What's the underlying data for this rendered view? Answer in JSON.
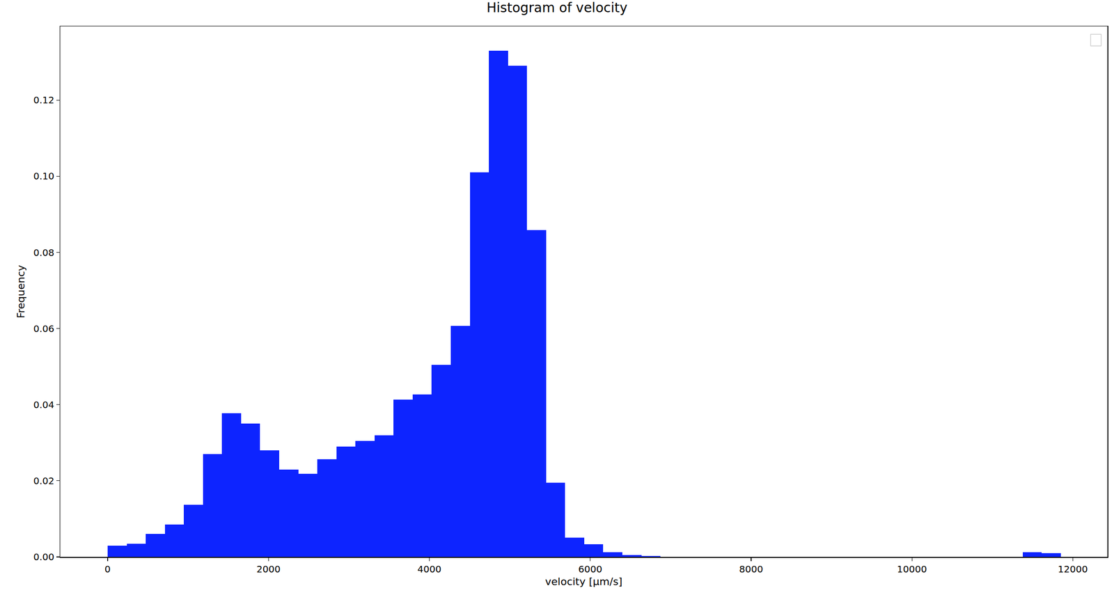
{
  "chart_data": {
    "type": "histogram",
    "title": "Histogram of velocity",
    "x_label": "velocity [μm/s]",
    "y_label": "Frequency",
    "bins": [
      0,
      237,
      474,
      711,
      948,
      1185,
      1422,
      1659,
      1896,
      2133,
      2370,
      2607,
      2844,
      3081,
      3318,
      3555,
      3792,
      4029,
      4266,
      4503,
      4740,
      4977,
      5214,
      5451,
      5688,
      5925,
      6162,
      6399,
      6636,
      6873,
      7110,
      7347,
      7584,
      7821,
      8058,
      8295,
      8532,
      8769,
      9006,
      9243,
      9480,
      9717,
      9954,
      10191,
      10428,
      10665,
      10902,
      11139,
      11376,
      11613,
      11850
    ],
    "values": [
      0.003,
      0.0035,
      0.006,
      0.0085,
      0.0137,
      0.027,
      0.0378,
      0.035,
      0.028,
      0.023,
      0.0218,
      0.0257,
      0.029,
      0.0305,
      0.032,
      0.0413,
      0.0427,
      0.0505,
      0.0607,
      0.101,
      0.133,
      0.129,
      0.0858,
      0.0195,
      0.005,
      0.0033,
      0.0012,
      0.0005,
      0.0002,
      0,
      0,
      0,
      0,
      0,
      0,
      0,
      0,
      0,
      0,
      0,
      0,
      0,
      0,
      0,
      0,
      0,
      0,
      0,
      0.0012,
      0.001
    ],
    "color": "#0d24ff",
    "xlim": [
      -590,
      12430
    ],
    "ylim": [
      0,
      0.1394
    ],
    "xticks": [
      0,
      2000,
      4000,
      6000,
      8000,
      10000,
      12000
    ],
    "yticks": [
      {
        "value": 0,
        "label": "0.00"
      },
      {
        "value": 0.02,
        "label": "0.02"
      },
      {
        "value": 0.04,
        "label": "0.04"
      },
      {
        "value": 0.06,
        "label": "0.06"
      },
      {
        "value": 0.08,
        "label": "0.08"
      },
      {
        "value": 0.1,
        "label": "0.10"
      },
      {
        "value": 0.12,
        "label": "0.12"
      }
    ],
    "grid": false
  }
}
